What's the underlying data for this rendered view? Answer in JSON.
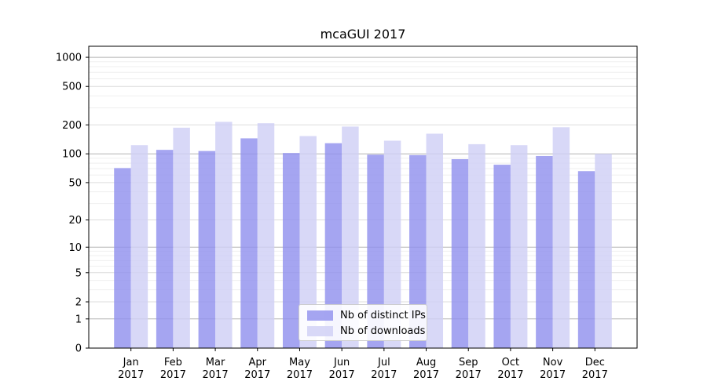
{
  "title": "mcaGUI 2017",
  "chart_data": {
    "type": "bar",
    "title": "mcaGUI 2017",
    "xlabel": "",
    "ylabel": "",
    "categories": [
      "Jan",
      "Feb",
      "Mar",
      "Apr",
      "May",
      "Jun",
      "Jul",
      "Aug",
      "Sep",
      "Oct",
      "Nov",
      "Dec"
    ],
    "category_year": "2017",
    "series": [
      {
        "name": "Nb of distinct IPs",
        "color": "#9191ee",
        "values": [
          71,
          110,
          107,
          145,
          102,
          129,
          98,
          97,
          88,
          77,
          95,
          66
        ]
      },
      {
        "name": "Nb of downloads",
        "color": "#cfcff5",
        "values": [
          123,
          187,
          215,
          208,
          153,
          192,
          137,
          162,
          126,
          123,
          189,
          100
        ]
      }
    ],
    "y_scale": "log10(value+1)",
    "y_ticks": [
      0,
      1,
      2,
      5,
      10,
      20,
      50,
      100,
      200,
      500,
      1000
    ],
    "ylim": [
      0,
      1300
    ],
    "grid": true,
    "legend_position": "lower center",
    "style": {
      "grid_major_color": "#b2b2b2",
      "grid_second_color": "#dcdcdc",
      "grid_minor_color": "#efefef",
      "axis_color": "#000000",
      "tick_label_color": "#000000"
    }
  }
}
